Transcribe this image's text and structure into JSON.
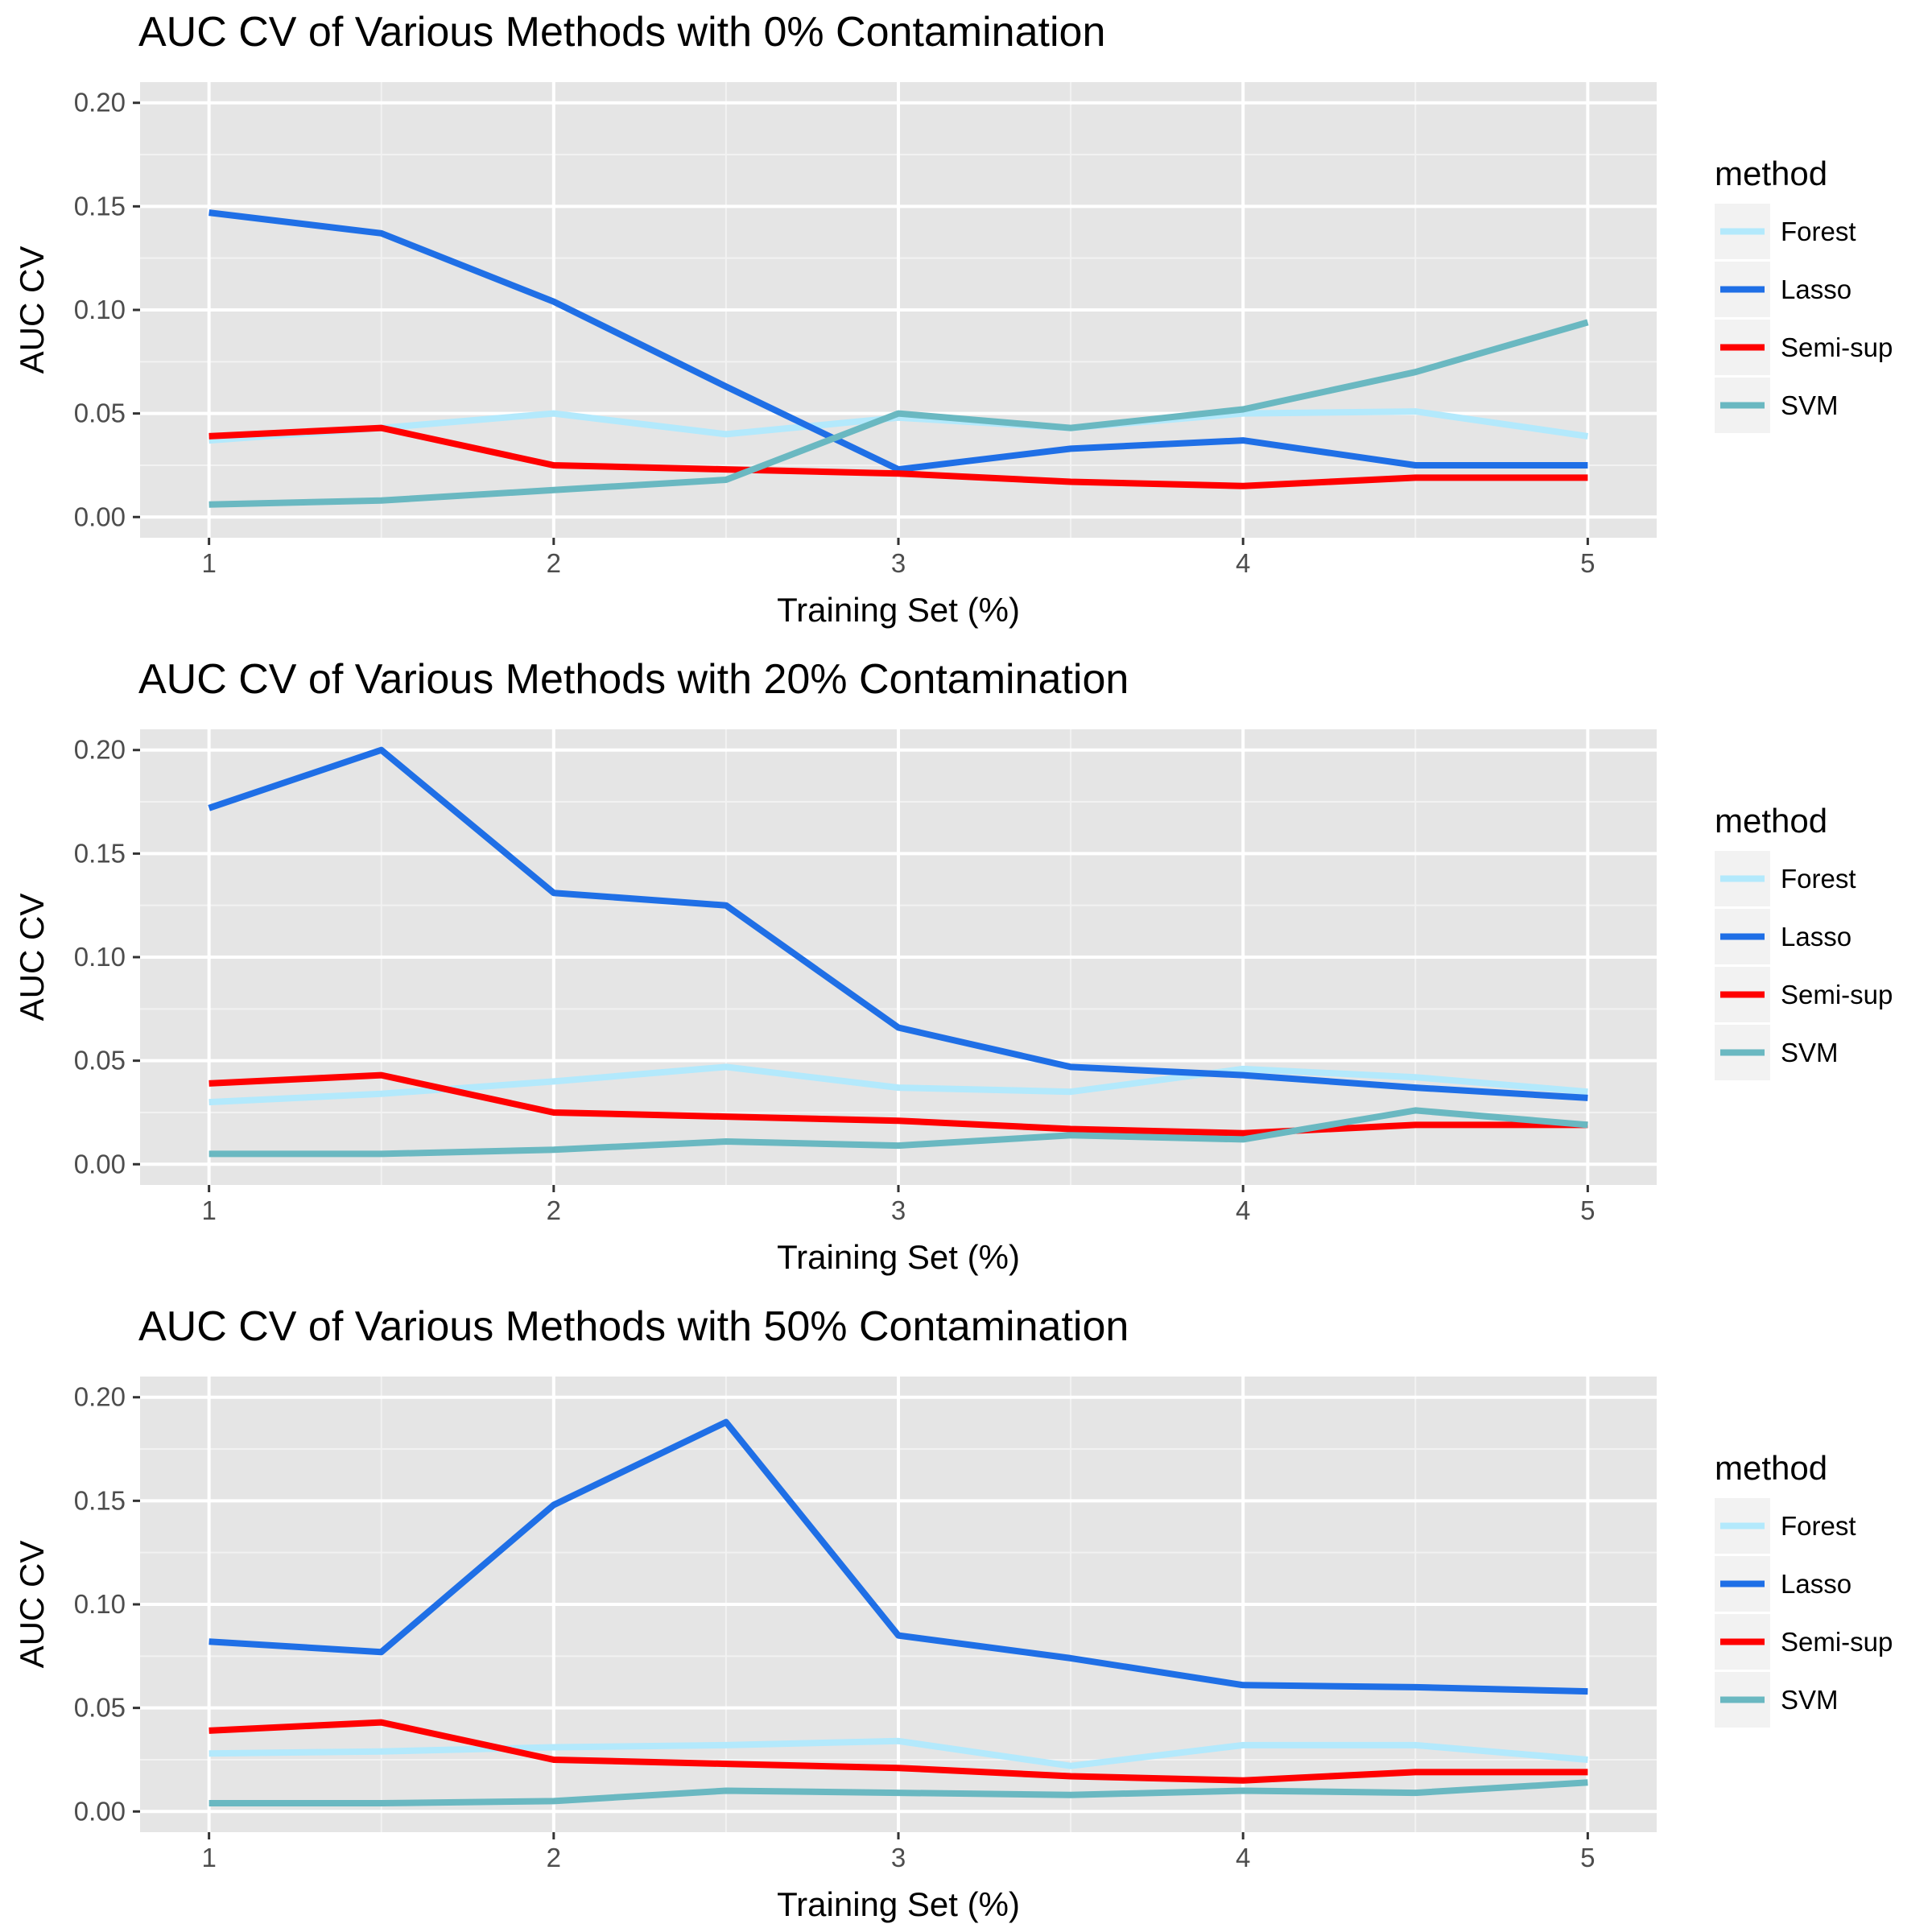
{
  "chart_data": [
    {
      "type": "line",
      "title": "AUC CV of Various Methods with 0% Contamination",
      "xlabel": "Training Set (%)",
      "ylabel": "AUC CV",
      "x": [
        1,
        1.5,
        2,
        2.5,
        3,
        3.5,
        4,
        4.5,
        5
      ],
      "xlim": [
        0.8,
        5.2
      ],
      "ylim": [
        -0.01,
        0.21
      ],
      "xticks": [
        "1",
        "2",
        "3",
        "4",
        "5"
      ],
      "yticks": [
        "0.00",
        "0.05",
        "0.10",
        "0.15",
        "0.20"
      ],
      "legend_title": "method",
      "legend_position": "right",
      "grid": true,
      "series": [
        {
          "name": "Forest",
          "color": "#b3e9fc",
          "values": [
            0.037,
            0.043,
            0.05,
            0.04,
            0.048,
            0.043,
            0.05,
            0.051,
            0.039
          ]
        },
        {
          "name": "Lasso",
          "color": "#1f6fe6",
          "values": [
            0.147,
            0.137,
            0.104,
            0.063,
            0.023,
            0.033,
            0.037,
            0.025,
            0.025
          ]
        },
        {
          "name": "Semi-sup",
          "color": "#ff0000",
          "values": [
            0.039,
            0.043,
            0.025,
            0.023,
            0.021,
            0.017,
            0.015,
            0.019,
            0.019
          ]
        },
        {
          "name": "SVM",
          "color": "#6ab8c1",
          "values": [
            0.006,
            0.008,
            0.013,
            0.018,
            0.05,
            0.043,
            0.052,
            0.07,
            0.094
          ]
        }
      ]
    },
    {
      "type": "line",
      "title": "AUC CV of Various Methods with 20% Contamination",
      "xlabel": "Training Set (%)",
      "ylabel": "AUC CV",
      "x": [
        1,
        1.5,
        2,
        2.5,
        3,
        3.5,
        4,
        4.5,
        5
      ],
      "xlim": [
        0.8,
        5.2
      ],
      "ylim": [
        -0.01,
        0.21
      ],
      "xticks": [
        "1",
        "2",
        "3",
        "4",
        "5"
      ],
      "yticks": [
        "0.00",
        "0.05",
        "0.10",
        "0.15",
        "0.20"
      ],
      "legend_title": "method",
      "legend_position": "right",
      "grid": true,
      "series": [
        {
          "name": "Forest",
          "color": "#b3e9fc",
          "values": [
            0.03,
            0.034,
            0.04,
            0.047,
            0.037,
            0.035,
            0.046,
            0.042,
            0.035
          ]
        },
        {
          "name": "Lasso",
          "color": "#1f6fe6",
          "values": [
            0.172,
            0.2,
            0.131,
            0.125,
            0.066,
            0.047,
            0.043,
            0.037,
            0.032
          ]
        },
        {
          "name": "Semi-sup",
          "color": "#ff0000",
          "values": [
            0.039,
            0.043,
            0.025,
            0.023,
            0.021,
            0.017,
            0.015,
            0.019,
            0.019
          ]
        },
        {
          "name": "SVM",
          "color": "#6ab8c1",
          "values": [
            0.005,
            0.005,
            0.007,
            0.011,
            0.009,
            0.014,
            0.012,
            0.026,
            0.019
          ]
        }
      ]
    },
    {
      "type": "line",
      "title": "AUC CV of Various Methods with 50% Contamination",
      "xlabel": "Training Set (%)",
      "ylabel": "AUC CV",
      "x": [
        1,
        1.5,
        2,
        2.5,
        3,
        3.5,
        4,
        4.5,
        5
      ],
      "xlim": [
        0.8,
        5.2
      ],
      "ylim": [
        -0.01,
        0.21
      ],
      "xticks": [
        "1",
        "2",
        "3",
        "4",
        "5"
      ],
      "yticks": [
        "0.00",
        "0.05",
        "0.10",
        "0.15",
        "0.20"
      ],
      "legend_title": "method",
      "legend_position": "right",
      "grid": true,
      "series": [
        {
          "name": "Forest",
          "color": "#b3e9fc",
          "values": [
            0.028,
            0.029,
            0.031,
            0.032,
            0.034,
            0.022,
            0.032,
            0.032,
            0.025
          ]
        },
        {
          "name": "Lasso",
          "color": "#1f6fe6",
          "values": [
            0.082,
            0.077,
            0.148,
            0.188,
            0.085,
            0.074,
            0.061,
            0.06,
            0.058
          ]
        },
        {
          "name": "Semi-sup",
          "color": "#ff0000",
          "values": [
            0.039,
            0.043,
            0.025,
            0.023,
            0.021,
            0.017,
            0.015,
            0.019,
            0.019
          ]
        },
        {
          "name": "SVM",
          "color": "#6ab8c1",
          "values": [
            0.004,
            0.004,
            0.005,
            0.01,
            0.009,
            0.008,
            0.01,
            0.009,
            0.014
          ]
        }
      ]
    }
  ]
}
